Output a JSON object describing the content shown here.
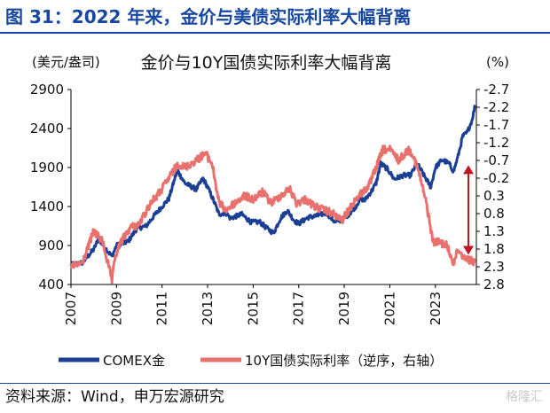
{
  "header": {
    "figure_title": "图 31：2022 年来，金价与美债实际利率大幅背离"
  },
  "footer": {
    "source": "资料来源：Wind，申万宏源研究",
    "watermark": "格隆汇"
  },
  "colors": {
    "title_blue": "#17479e",
    "gold_series": "#1b3f94",
    "yield_series": "#e8716e",
    "arrow": "#c0191d",
    "axis": "#000000"
  },
  "chart_data": {
    "type": "line",
    "title": "金价与10Y国债实际利率大幅背离",
    "left_axis_unit": "(美元/盎司)",
    "right_axis_unit": "(%)",
    "left_ylim": [
      400,
      2900
    ],
    "left_yticks": [
      400,
      900,
      1400,
      1900,
      2400,
      2900
    ],
    "left_ytick_labels": [
      "400",
      "900",
      "1400",
      "1900",
      "2400",
      "2900"
    ],
    "right_ylim": [
      2.8,
      -2.7
    ],
    "right_inverted": true,
    "right_yticks": [
      -2.7,
      -2.2,
      -1.7,
      -1.2,
      -0.7,
      -0.2,
      0.3,
      0.8,
      1.3,
      1.8,
      2.3,
      2.8
    ],
    "right_ytick_labels": [
      "-2.7",
      "-2.2",
      "-1.7",
      "-1.2",
      "-0.7",
      "-0.2",
      "0.3",
      "0.8",
      "1.3",
      "1.8",
      "2.3",
      "2.8"
    ],
    "xlim": [
      2007.0,
      2024.8
    ],
    "xticks": [
      2007,
      2009,
      2011,
      2013,
      2015,
      2017,
      2019,
      2021,
      2023
    ],
    "xtick_labels": [
      "2007",
      "2009",
      "2011",
      "2013",
      "2015",
      "2017",
      "2019",
      "2021",
      "2023"
    ],
    "grid": false,
    "legend_position": "bottom",
    "legend": [
      "COMEX金",
      "10Y国债实际利率（逆序，右轴）"
    ],
    "series": [
      {
        "name": "COMEX金",
        "axis": "left",
        "x": [
          2007.0,
          2007.5,
          2008.0,
          2008.2,
          2008.5,
          2008.8,
          2009.0,
          2009.5,
          2009.9,
          2010.3,
          2010.7,
          2011.0,
          2011.3,
          2011.6,
          2011.7,
          2012.0,
          2012.5,
          2012.8,
          2013.0,
          2013.3,
          2013.5,
          2013.8,
          2014.0,
          2014.5,
          2014.9,
          2015.3,
          2015.6,
          2015.9,
          2016.2,
          2016.5,
          2016.8,
          2017.0,
          2017.4,
          2017.8,
          2018.2,
          2018.6,
          2018.9,
          2019.2,
          2019.5,
          2019.7,
          2019.9,
          2020.2,
          2020.4,
          2020.6,
          2020.9,
          2021.2,
          2021.6,
          2021.9,
          2022.2,
          2022.5,
          2022.8,
          2023.0,
          2023.3,
          2023.6,
          2023.8,
          2024.0,
          2024.2,
          2024.4,
          2024.6,
          2024.75
        ],
        "values": [
          650,
          680,
          850,
          980,
          870,
          760,
          900,
          950,
          1120,
          1150,
          1300,
          1400,
          1500,
          1800,
          1850,
          1700,
          1620,
          1760,
          1650,
          1450,
          1300,
          1320,
          1250,
          1300,
          1200,
          1200,
          1120,
          1060,
          1250,
          1350,
          1220,
          1180,
          1260,
          1280,
          1320,
          1200,
          1230,
          1300,
          1400,
          1500,
          1480,
          1600,
          1700,
          1950,
          1880,
          1750,
          1800,
          1800,
          1950,
          1800,
          1650,
          1900,
          2000,
          1950,
          1850,
          2050,
          2300,
          2350,
          2500,
          2700
        ]
      },
      {
        "name": "10Y国债实际利率（逆序，右轴）",
        "axis": "right",
        "inverted": true,
        "x": [
          2007.0,
          2007.5,
          2008.0,
          2008.4,
          2008.8,
          2008.95,
          2009.2,
          2009.6,
          2010.0,
          2010.5,
          2010.9,
          2011.3,
          2011.7,
          2012.0,
          2012.5,
          2012.9,
          2013.2,
          2013.5,
          2013.8,
          2014.2,
          2014.6,
          2015.0,
          2015.4,
          2015.8,
          2016.2,
          2016.6,
          2016.9,
          2017.3,
          2017.7,
          2018.1,
          2018.5,
          2018.9,
          2019.2,
          2019.5,
          2019.8,
          2020.1,
          2020.4,
          2020.7,
          2021.0,
          2021.4,
          2021.8,
          2022.0,
          2022.3,
          2022.6,
          2022.9,
          2023.2,
          2023.5,
          2023.8,
          2024.0,
          2024.2,
          2024.5,
          2024.75
        ],
        "values": [
          2.3,
          2.2,
          1.3,
          1.6,
          2.7,
          2.0,
          1.6,
          1.2,
          1.1,
          0.5,
          0.2,
          -0.2,
          -0.6,
          -0.5,
          -0.7,
          -0.9,
          -0.6,
          0.5,
          0.7,
          0.5,
          0.3,
          0.4,
          0.2,
          0.5,
          0.3,
          0.1,
          0.5,
          0.4,
          0.6,
          0.7,
          0.8,
          1.0,
          0.7,
          0.4,
          0.2,
          0.0,
          -0.5,
          -1.0,
          -1.0,
          -0.7,
          -1.0,
          -0.9,
          -0.3,
          0.5,
          1.6,
          1.6,
          1.7,
          2.2,
          1.8,
          2.0,
          2.1,
          2.2
        ]
      }
    ],
    "annotation": {
      "type": "double-arrow",
      "x": 2024.45,
      "from_left_value": 1930,
      "to_left_value": 780
    }
  }
}
